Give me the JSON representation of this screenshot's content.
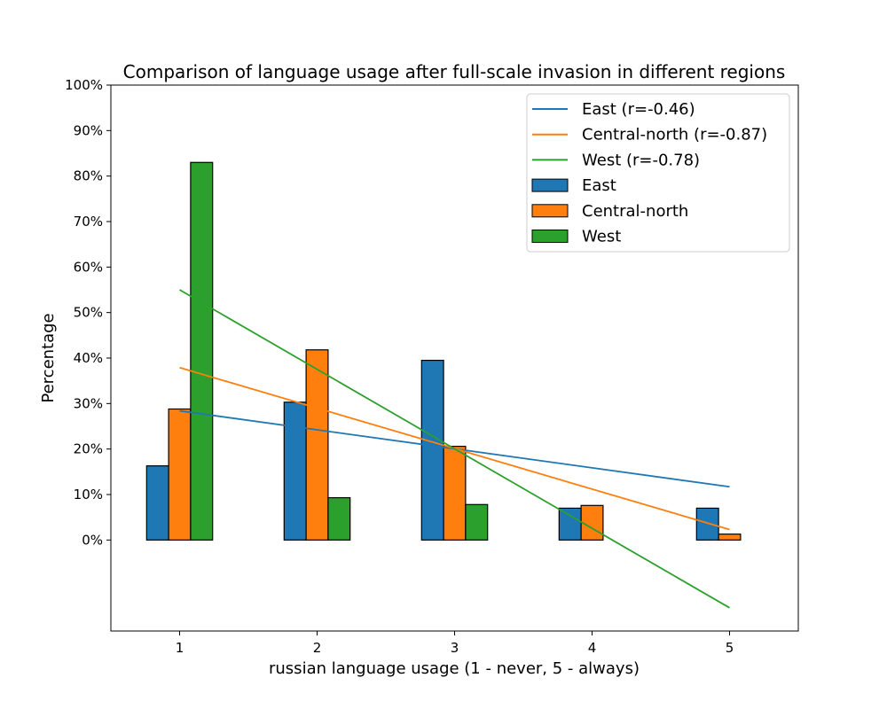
{
  "chart_data": {
    "type": "bar",
    "title": "Comparison of language usage after full-scale invasion in different regions",
    "xlabel": "russian language usage (1 - never, 5 - always)",
    "ylabel": "Percentage",
    "categories": [
      "1",
      "2",
      "3",
      "4",
      "5"
    ],
    "x": [
      1,
      2,
      3,
      4,
      5
    ],
    "ylim": [
      -20,
      100
    ],
    "yticks": [
      0,
      10,
      20,
      30,
      40,
      50,
      60,
      70,
      80,
      90,
      100
    ],
    "ytick_labels": [
      "0%",
      "10%",
      "20%",
      "30%",
      "40%",
      "50%",
      "60%",
      "70%",
      "80%",
      "90%",
      "100%"
    ],
    "grid": false,
    "legend_position": "top-right",
    "series": [
      {
        "name": "East",
        "color": "#1f77b4",
        "values": [
          16.3,
          30.3,
          39.5,
          7.0,
          7.0
        ]
      },
      {
        "name": "Central-north",
        "color": "#ff7f0e",
        "values": [
          28.8,
          41.8,
          20.6,
          7.6,
          1.3
        ]
      },
      {
        "name": "West",
        "color": "#2ca02c",
        "values": [
          83.0,
          9.3,
          7.8,
          0.0,
          0.0
        ]
      }
    ],
    "trend_lines": [
      {
        "name": "East (r=-0.46)",
        "color": "#1f77b4",
        "x": [
          1,
          5
        ],
        "y": [
          28.4,
          11.7
        ]
      },
      {
        "name": "Central-north (r=-0.87)",
        "color": "#ff7f0e",
        "x": [
          1,
          5
        ],
        "y": [
          37.9,
          2.3
        ]
      },
      {
        "name": "West (r=-0.78)",
        "color": "#2ca02c",
        "x": [
          1,
          5
        ],
        "y": [
          55.0,
          -14.9
        ]
      }
    ]
  }
}
